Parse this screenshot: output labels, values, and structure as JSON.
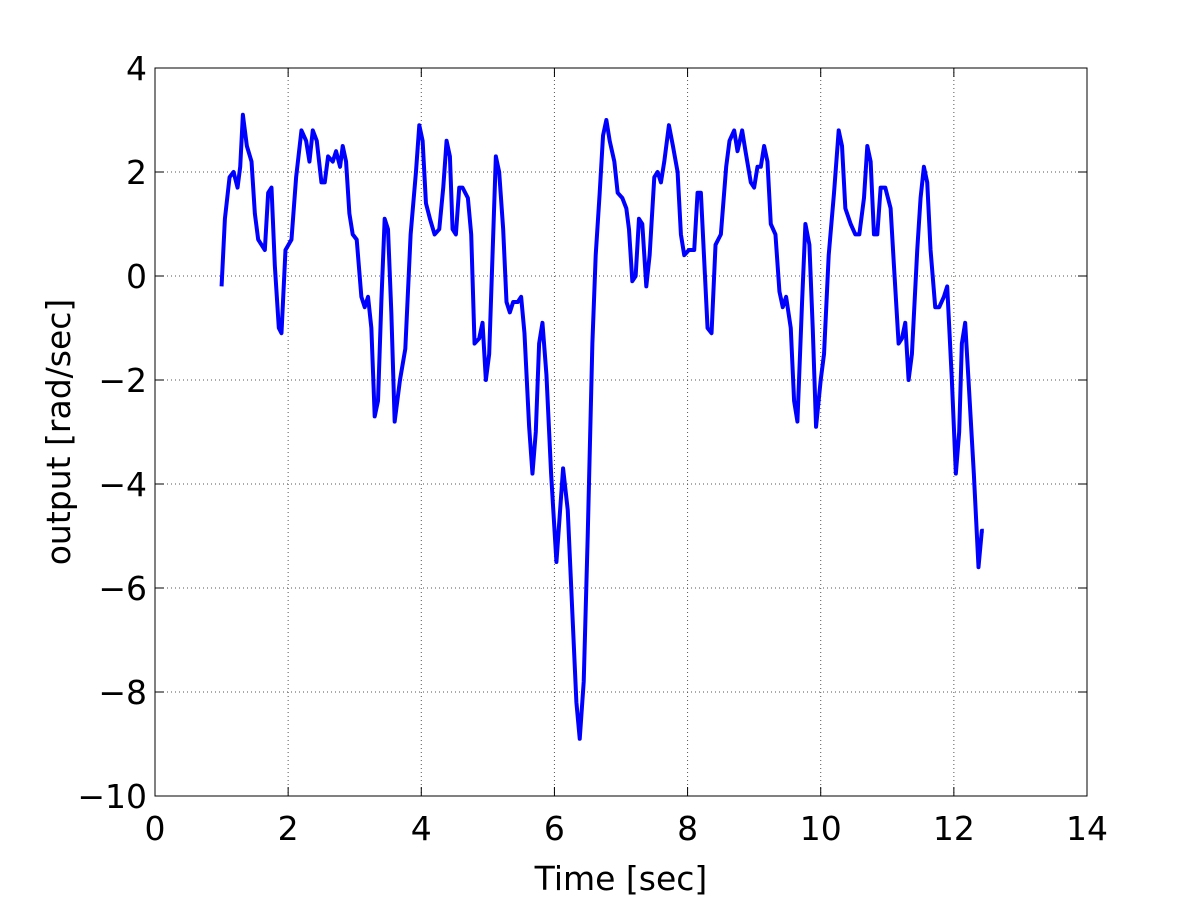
{
  "chart_data": {
    "type": "line",
    "xlabel": "Time [sec]",
    "ylabel": "output [rad/sec]",
    "xlim": [
      0,
      14
    ],
    "ylim": [
      -10,
      4
    ],
    "xticks": [
      0,
      2,
      4,
      6,
      8,
      10,
      12,
      14
    ],
    "yticks": [
      {
        "value": -10,
        "label": "−10"
      },
      {
        "value": -8,
        "label": "−8"
      },
      {
        "value": -6,
        "label": "−6"
      },
      {
        "value": -4,
        "label": "−4"
      },
      {
        "value": -2,
        "label": "−2"
      },
      0,
      2,
      4
    ],
    "grid": true,
    "series": [
      {
        "color": "#0000ff",
        "x": [
          1.0,
          1.05,
          1.12,
          1.18,
          1.24,
          1.28,
          1.32,
          1.38,
          1.45,
          1.5,
          1.55,
          1.6,
          1.65,
          1.7,
          1.75,
          1.8,
          1.86,
          1.9,
          1.96,
          2.05,
          2.12,
          2.2,
          2.27,
          2.32,
          2.37,
          2.43,
          2.5,
          2.55,
          2.6,
          2.67,
          2.72,
          2.78,
          2.82,
          2.87,
          2.92,
          2.97,
          3.03,
          3.1,
          3.15,
          3.2,
          3.25,
          3.3,
          3.35,
          3.4,
          3.45,
          3.5,
          3.55,
          3.6,
          3.68,
          3.76,
          3.84,
          3.92,
          3.97,
          4.02,
          4.07,
          4.13,
          4.2,
          4.27,
          4.33,
          4.38,
          4.43,
          4.47,
          4.52,
          4.57,
          4.62,
          4.7,
          4.75,
          4.8,
          4.87,
          4.92,
          4.97,
          5.02,
          5.07,
          5.12,
          5.17,
          5.23,
          5.28,
          5.33,
          5.38,
          5.45,
          5.5,
          5.55,
          5.62,
          5.67,
          5.72,
          5.77,
          5.82,
          5.88,
          5.95,
          6.03,
          6.08,
          6.13,
          6.2,
          6.27,
          6.33,
          6.38,
          6.44,
          6.5,
          6.57,
          6.62,
          6.68,
          6.73,
          6.78,
          6.83,
          6.9,
          6.95,
          7.02,
          7.08,
          7.12,
          7.17,
          7.22,
          7.27,
          7.32,
          7.38,
          7.43,
          7.5,
          7.55,
          7.6,
          7.65,
          7.72,
          7.78,
          7.85,
          7.9,
          7.95,
          8.02,
          8.1,
          8.15,
          8.2,
          8.25,
          8.3,
          8.36,
          8.42,
          8.5,
          8.58,
          8.63,
          8.7,
          8.75,
          8.82,
          8.87,
          8.95,
          9.0,
          9.05,
          9.1,
          9.15,
          9.2,
          9.25,
          9.32,
          9.38,
          9.43,
          9.48,
          9.55,
          9.6,
          9.65,
          9.72,
          9.77,
          9.83,
          9.88,
          9.93,
          10.0,
          10.05,
          10.12,
          10.2,
          10.27,
          10.32,
          10.37,
          10.45,
          10.52,
          10.58,
          10.65,
          10.7,
          10.75,
          10.8,
          10.85,
          10.9,
          10.97,
          11.05,
          11.1,
          11.17,
          11.22,
          11.27,
          11.32,
          11.37,
          11.45,
          11.5,
          11.55,
          11.6,
          11.65,
          11.72,
          11.78,
          11.85,
          11.9,
          11.97,
          12.03,
          12.08,
          12.12,
          12.17,
          12.22,
          12.3,
          12.37,
          12.42,
          12.45
        ],
        "values": [
          -0.2,
          1.1,
          1.9,
          2.0,
          1.7,
          2.1,
          3.1,
          2.5,
          2.2,
          1.2,
          0.7,
          0.6,
          0.5,
          1.6,
          1.7,
          0.2,
          -1.0,
          -1.1,
          0.5,
          0.7,
          1.9,
          2.8,
          2.6,
          2.2,
          2.8,
          2.6,
          1.8,
          1.8,
          2.3,
          2.2,
          2.4,
          2.1,
          2.5,
          2.2,
          1.2,
          0.8,
          0.7,
          -0.4,
          -0.6,
          -0.4,
          -1.0,
          -2.7,
          -2.4,
          -0.5,
          1.1,
          0.9,
          -0.7,
          -2.8,
          -2.0,
          -1.4,
          0.8,
          2.0,
          2.9,
          2.6,
          1.4,
          1.1,
          0.8,
          0.9,
          1.7,
          2.6,
          2.3,
          0.9,
          0.8,
          1.7,
          1.7,
          1.5,
          0.8,
          -1.3,
          -1.2,
          -0.9,
          -2.0,
          -1.5,
          0.4,
          2.3,
          2.0,
          0.9,
          -0.5,
          -0.7,
          -0.5,
          -0.5,
          -0.4,
          -1.1,
          -2.9,
          -3.8,
          -3.0,
          -1.3,
          -0.9,
          -1.9,
          -3.8,
          -5.5,
          -4.6,
          -3.7,
          -4.5,
          -6.5,
          -8.2,
          -8.9,
          -7.8,
          -5.0,
          -1.3,
          0.4,
          1.6,
          2.7,
          3.0,
          2.6,
          2.2,
          1.6,
          1.5,
          1.3,
          0.9,
          -0.1,
          0.0,
          1.1,
          1.0,
          -0.2,
          0.4,
          1.9,
          2.0,
          1.8,
          2.2,
          2.9,
          2.5,
          2.0,
          0.8,
          0.4,
          0.5,
          0.5,
          1.6,
          1.6,
          0.3,
          -1.0,
          -1.1,
          0.6,
          0.8,
          2.1,
          2.6,
          2.8,
          2.4,
          2.8,
          2.4,
          1.8,
          1.7,
          2.1,
          2.1,
          2.5,
          2.2,
          1.0,
          0.8,
          -0.3,
          -0.6,
          -0.4,
          -1.0,
          -2.4,
          -2.8,
          -0.5,
          1.0,
          0.6,
          -1.0,
          -2.9,
          -2.0,
          -1.5,
          0.4,
          1.6,
          2.8,
          2.5,
          1.3,
          1.0,
          0.8,
          0.8,
          1.5,
          2.5,
          2.2,
          0.8,
          0.8,
          1.7,
          1.7,
          1.3,
          0.2,
          -1.3,
          -1.2,
          -0.9,
          -2.0,
          -1.5,
          0.5,
          1.5,
          2.1,
          1.8,
          0.5,
          -0.6,
          -0.6,
          -0.4,
          -0.2,
          -2.0,
          -3.8,
          -3.0,
          -1.3,
          -0.9,
          -2.0,
          -3.8,
          -5.6,
          -4.9,
          -4.9
        ]
      }
    ]
  }
}
